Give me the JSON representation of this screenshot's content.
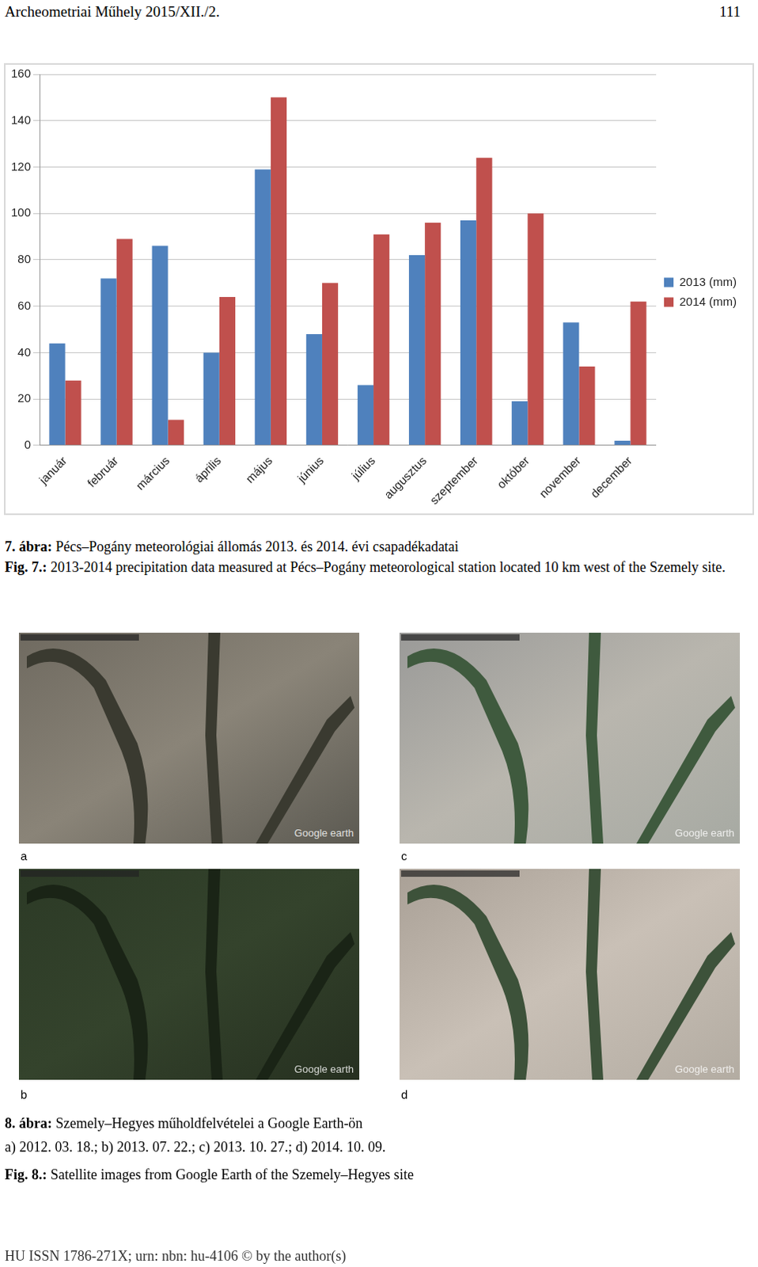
{
  "header": {
    "left": "Archeometriai Műhely 2015/XII./2.",
    "right": "111"
  },
  "chart_data": {
    "type": "bar",
    "categories": [
      "január",
      "február",
      "március",
      "április",
      "május",
      "június",
      "július",
      "augusztus",
      "szeptember",
      "október",
      "november",
      "december"
    ],
    "series": [
      {
        "name": "2013 (mm)",
        "color": "#4f81bd",
        "values": [
          44,
          72,
          86,
          40,
          119,
          48,
          26,
          82,
          97,
          19,
          53,
          2
        ]
      },
      {
        "name": "2014 (mm)",
        "color": "#c0504d",
        "values": [
          28,
          89,
          11,
          64,
          150,
          70,
          91,
          96,
          124,
          100,
          34,
          62
        ]
      }
    ],
    "ylim": [
      0,
      160
    ],
    "yticks": [
      0,
      20,
      40,
      60,
      80,
      100,
      120,
      140,
      160
    ],
    "grid": true,
    "legend": "right"
  },
  "figure7_caption": {
    "hu_label": "7. ábra:",
    "hu_text": "Pécs–Pogány meteorológiai állomás 2013. és 2014. évi csapadékadatai",
    "en_label": "Fig. 7.:",
    "en_text": "2013-2014 precipitation data measured at Pécs–Pogány meteorological station located 10 km west of the Szemely site."
  },
  "figure8": {
    "panels": [
      {
        "label": "a",
        "watermark": "Google earth"
      },
      {
        "label": "b",
        "watermark": "Google earth"
      },
      {
        "label": "c",
        "watermark": "Google earth"
      },
      {
        "label": "d",
        "watermark": "Google earth"
      }
    ]
  },
  "figure8_caption": {
    "hu_label": "8. ábra:",
    "hu_text": "Szemely–Hegyes műholdfelvételei a Google Earth-ön",
    "hu_dates": "a) 2012. 03. 18.; b) 2013. 07. 22.; c) 2013. 10. 27.; d) 2014. 10. 09.",
    "en_label": "Fig. 8.:",
    "en_text": "Satellite images from Google Earth of the Szemely–Hegyes site"
  },
  "footer": "HU ISSN 1786-271X; urn: nbn: hu-4106 © by the author(s)"
}
